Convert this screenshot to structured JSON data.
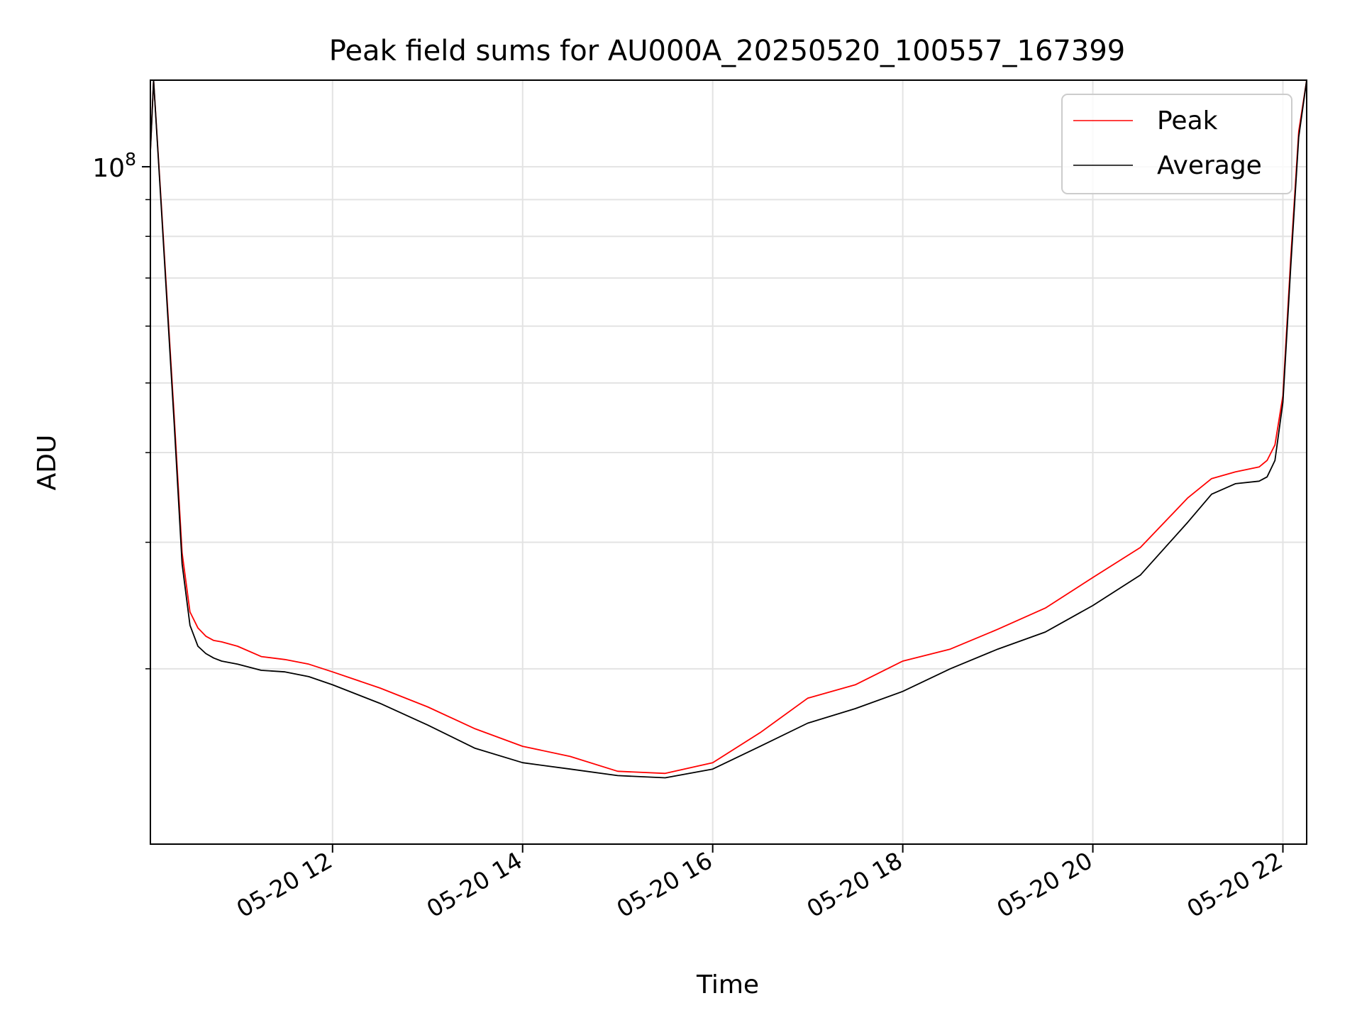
{
  "chart_data": {
    "type": "line",
    "title": "Peak field sums for AU000A_20250520_100557_167399",
    "xlabel": "Time",
    "ylabel": "ADU",
    "yscale": "log",
    "xlim": [
      "2025-05-20 10:05",
      "2025-05-20 22:15"
    ],
    "ylim": [
      11400000,
      132000000
    ],
    "x_ticks": [
      {
        "value": "2025-05-20 12:00",
        "label": "05-20 12"
      },
      {
        "value": "2025-05-20 14:00",
        "label": "05-20 14"
      },
      {
        "value": "2025-05-20 16:00",
        "label": "05-20 16"
      },
      {
        "value": "2025-05-20 18:00",
        "label": "05-20 18"
      },
      {
        "value": "2025-05-20 20:00",
        "label": "05-20 20"
      },
      {
        "value": "2025-05-20 22:00",
        "label": "05-20 22"
      }
    ],
    "y_major_ticks": [
      {
        "value": 100000000,
        "label_base": "10",
        "label_exp": "8"
      }
    ],
    "y_minor_ticks": [
      20000000,
      30000000,
      40000000,
      50000000,
      60000000,
      70000000,
      80000000,
      90000000
    ],
    "grid": true,
    "legend_position": "top-right",
    "series": [
      {
        "name": "Peak",
        "color": "#ff0000",
        "x": [
          "2025-05-20 10:05",
          "2025-05-20 10:07",
          "2025-05-20 10:12",
          "2025-05-20 10:20",
          "2025-05-20 10:25",
          "2025-05-20 10:30",
          "2025-05-20 10:35",
          "2025-05-20 10:40",
          "2025-05-20 10:45",
          "2025-05-20 10:50",
          "2025-05-20 11:00",
          "2025-05-20 11:15",
          "2025-05-20 11:30",
          "2025-05-20 11:45",
          "2025-05-20 12:00",
          "2025-05-20 12:30",
          "2025-05-20 13:00",
          "2025-05-20 13:30",
          "2025-05-20 14:00",
          "2025-05-20 14:30",
          "2025-05-20 15:00",
          "2025-05-20 15:30",
          "2025-05-20 16:00",
          "2025-05-20 16:30",
          "2025-05-20 17:00",
          "2025-05-20 17:30",
          "2025-05-20 18:00",
          "2025-05-20 18:30",
          "2025-05-20 19:00",
          "2025-05-20 19:30",
          "2025-05-20 20:00",
          "2025-05-20 20:30",
          "2025-05-20 21:00",
          "2025-05-20 21:15",
          "2025-05-20 21:30",
          "2025-05-20 21:45",
          "2025-05-20 21:50",
          "2025-05-20 21:55",
          "2025-05-20 22:00",
          "2025-05-20 22:05",
          "2025-05-20 22:10",
          "2025-05-20 22:15"
        ],
        "y": [
          105000000,
          132000000,
          88000000,
          45000000,
          29000000,
          24000000,
          22800000,
          22200000,
          21900000,
          21800000,
          21500000,
          20800000,
          20600000,
          20300000,
          19800000,
          18800000,
          17700000,
          16500000,
          15600000,
          15100000,
          14400000,
          14300000,
          14800000,
          16300000,
          18200000,
          19000000,
          20500000,
          21300000,
          22700000,
          24300000,
          26800000,
          29500000,
          34600000,
          36800000,
          37600000,
          38200000,
          39000000,
          41000000,
          48000000,
          75000000,
          112000000,
          132000000
        ]
      },
      {
        "name": "Average",
        "color": "#000000",
        "x": [
          "2025-05-20 10:05",
          "2025-05-20 10:07",
          "2025-05-20 10:12",
          "2025-05-20 10:20",
          "2025-05-20 10:25",
          "2025-05-20 10:30",
          "2025-05-20 10:35",
          "2025-05-20 10:40",
          "2025-05-20 10:45",
          "2025-05-20 10:50",
          "2025-05-20 11:00",
          "2025-05-20 11:15",
          "2025-05-20 11:30",
          "2025-05-20 11:45",
          "2025-05-20 12:00",
          "2025-05-20 12:30",
          "2025-05-20 13:00",
          "2025-05-20 13:30",
          "2025-05-20 14:00",
          "2025-05-20 14:30",
          "2025-05-20 15:00",
          "2025-05-20 15:30",
          "2025-05-20 16:00",
          "2025-05-20 16:30",
          "2025-05-20 17:00",
          "2025-05-20 17:30",
          "2025-05-20 18:00",
          "2025-05-20 18:30",
          "2025-05-20 19:00",
          "2025-05-20 19:30",
          "2025-05-20 20:00",
          "2025-05-20 20:30",
          "2025-05-20 21:00",
          "2025-05-20 21:15",
          "2025-05-20 21:30",
          "2025-05-20 21:45",
          "2025-05-20 21:50",
          "2025-05-20 21:55",
          "2025-05-20 22:00",
          "2025-05-20 22:05",
          "2025-05-20 22:10",
          "2025-05-20 22:15"
        ],
        "y": [
          105000000,
          132000000,
          87000000,
          44000000,
          28000000,
          23000000,
          21500000,
          21000000,
          20700000,
          20500000,
          20300000,
          19900000,
          19800000,
          19500000,
          19000000,
          17900000,
          16700000,
          15500000,
          14800000,
          14500000,
          14200000,
          14100000,
          14500000,
          15600000,
          16800000,
          17600000,
          18600000,
          20000000,
          21300000,
          22500000,
          24500000,
          27000000,
          32000000,
          35000000,
          36200000,
          36500000,
          37000000,
          39000000,
          47000000,
          73000000,
          110000000,
          132000000
        ]
      }
    ]
  }
}
